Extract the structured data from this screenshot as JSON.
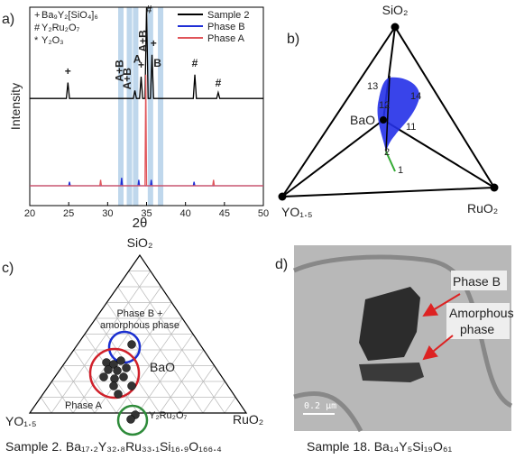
{
  "chart_data": {
    "type": "line",
    "panel_label": "a)",
    "ylabel": "Intensity",
    "xlabel": "2θ",
    "xlim": [
      20,
      50
    ],
    "xticks": [
      20,
      25,
      30,
      35,
      40,
      45,
      50
    ],
    "ylim": [
      0,
      100
    ],
    "highlight_bands": [
      31.7,
      32.8,
      33.6,
      35.5,
      36.8
    ],
    "legend_left": [
      {
        "symbol": "+",
        "label": "Ba₉Y₂[SiO₄]₆"
      },
      {
        "symbol": "#",
        "label": "Y₂Ru₂O₇"
      },
      {
        "symbol": "*",
        "label": "Y₂O₃"
      }
    ],
    "annotations": [
      {
        "text": "+",
        "x": 24.9,
        "y": 66
      },
      {
        "text": "A+B",
        "x": 32.0,
        "y": 68
      },
      {
        "text": "A+B",
        "x": 33.0,
        "y": 64
      },
      {
        "text": "A",
        "x": 33.8,
        "y": 72
      },
      {
        "text": "+",
        "x": 34.3,
        "y": 69
      },
      {
        "text": "A+B",
        "x": 35.0,
        "y": 83
      },
      {
        "text": "#",
        "x": 35.3,
        "y": 97
      },
      {
        "text": "+",
        "x": 35.9,
        "y": 80
      },
      {
        "text": "B",
        "x": 36.4,
        "y": 70
      },
      {
        "text": "#",
        "x": 41.2,
        "y": 70
      },
      {
        "text": "#",
        "x": 44.2,
        "y": 60
      }
    ],
    "series": [
      {
        "name": "Sample 2",
        "color": "#000000",
        "x": [
          20,
          24.7,
          24.9,
          25.1,
          33.3,
          33.5,
          33.7,
          34.1,
          34.3,
          34.5,
          34.8,
          35.0,
          35.2,
          35.5,
          35.7,
          35.9,
          41.0,
          41.2,
          41.4,
          44.0,
          44.2,
          44.4,
          50
        ],
        "values": [
          54,
          54,
          62,
          54,
          54,
          58,
          54,
          54,
          65,
          54,
          54,
          100,
          54,
          54,
          76,
          54,
          54,
          66,
          54,
          54,
          57,
          54,
          54
        ]
      },
      {
        "name": "Phase B",
        "color": "#1f2fd6",
        "x": [
          20,
          25.0,
          25.1,
          25.2,
          31.7,
          31.8,
          31.9,
          33.9,
          34.0,
          34.1,
          35.5,
          35.6,
          35.7,
          41.0,
          41.1,
          41.2,
          50
        ],
        "values": [
          10,
          10,
          12,
          10,
          10,
          14,
          10,
          10,
          13,
          10,
          10,
          13,
          10,
          10,
          12,
          10,
          10
        ]
      },
      {
        "name": "Phase A",
        "color": "#e0555a",
        "x": [
          20,
          29.0,
          29.1,
          29.2,
          34.8,
          34.9,
          35.0,
          43.5,
          43.6,
          43.7,
          50
        ],
        "values": [
          10,
          10,
          13,
          10,
          10,
          66,
          10,
          10,
          13,
          10,
          10
        ]
      }
    ]
  },
  "ternary_b": {
    "panel_label": "b)",
    "top": "SiO₂",
    "left": "YO₁.₅",
    "right": "RuO₂",
    "center": "BaO",
    "points": [
      "13",
      "12",
      "14",
      "11",
      "2",
      "1"
    ]
  },
  "ternary_c": {
    "panel_label": "c)",
    "top": "SiO₂",
    "left": "YO₁.₅",
    "right": "RuO₂",
    "region_b": [
      "Phase B +",
      "amorphous phase"
    ],
    "region_bao": "BaO",
    "region_a": "Phase A",
    "region_y": "Y₂Ru₂O₇",
    "caption": "Sample 2. Ba₁₇.₂Y₃₂.₈Ru₃₃.₁Si₁₆.₉O₁₆₆.₄"
  },
  "micrograph_d": {
    "panel_label": "d)",
    "label_b": "Phase B",
    "label_amorphous": [
      "Amorphous",
      "phase"
    ],
    "scale": "0.2 μm",
    "caption": "Sample 18. Ba₁₄Y₅Si₁₉O₆₁"
  }
}
